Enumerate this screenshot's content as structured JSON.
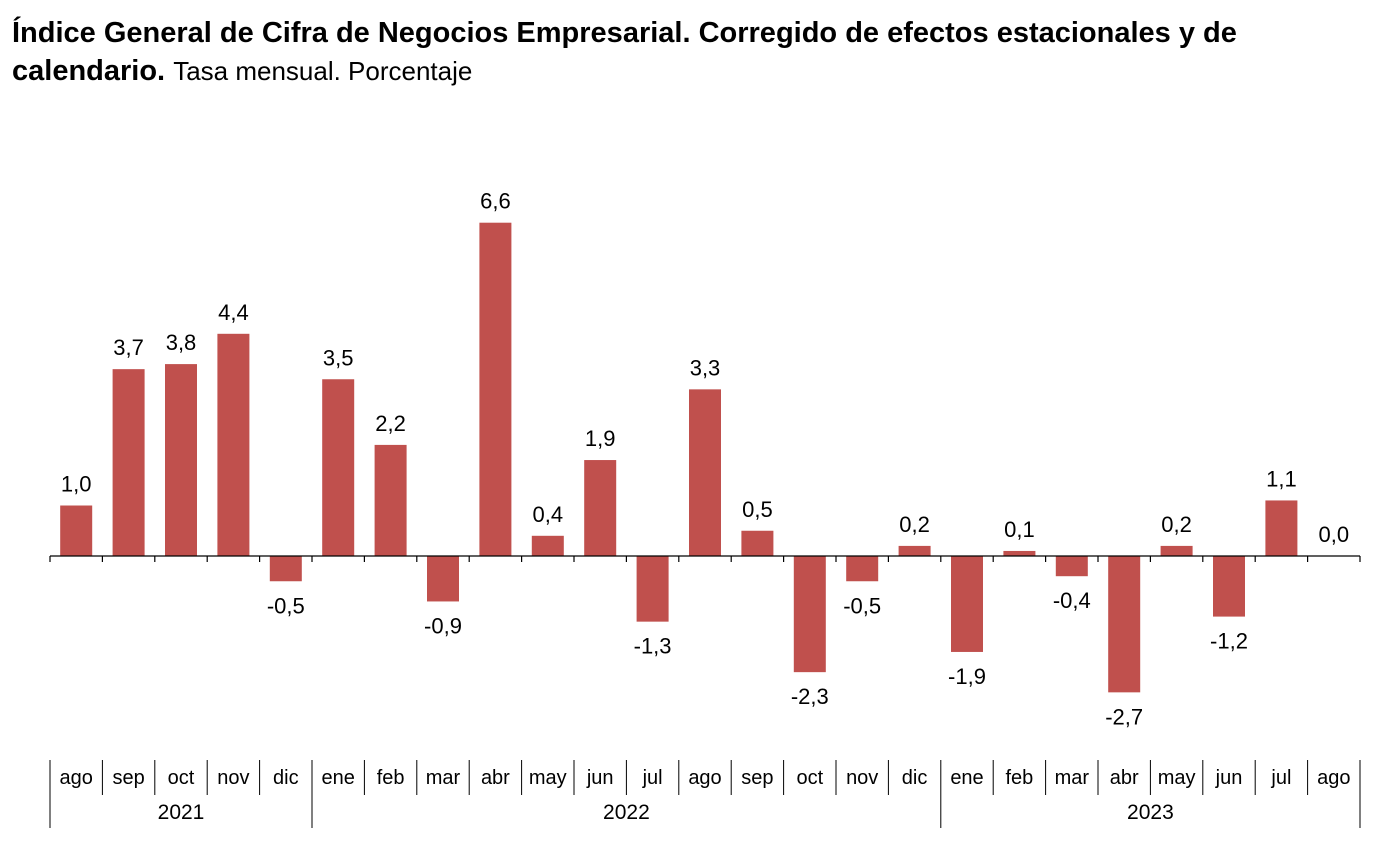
{
  "title": {
    "bold": "Índice General de Cifra de Negocios Empresarial. Corregido de efectos estacionales y de calendario.",
    "normal": "Tasa mensual. Porcentaje"
  },
  "chart_data": {
    "type": "bar",
    "title": "Índice General de Cifra de Negocios Empresarial. Corregido de efectos estacionales y de calendario. Tasa mensual. Porcentaje",
    "xlabel": "",
    "ylabel": "Porcentaje",
    "categories": [
      "ago",
      "sep",
      "oct",
      "nov",
      "dic",
      "ene",
      "feb",
      "mar",
      "abr",
      "may",
      "jun",
      "jul",
      "ago",
      "sep",
      "oct",
      "nov",
      "dic",
      "ene",
      "feb",
      "mar",
      "abr",
      "may",
      "jun",
      "jul",
      "ago"
    ],
    "years": [
      {
        "label": "2021",
        "start": 0,
        "end": 4
      },
      {
        "label": "2022",
        "start": 5,
        "end": 16
      },
      {
        "label": "2023",
        "start": 17,
        "end": 24
      }
    ],
    "values": [
      1.0,
      3.7,
      3.8,
      4.4,
      -0.5,
      3.5,
      2.2,
      -0.9,
      6.6,
      0.4,
      1.9,
      -1.3,
      3.3,
      0.5,
      -2.3,
      -0.5,
      0.2,
      -1.9,
      0.1,
      -0.4,
      -2.7,
      0.2,
      -1.2,
      1.1,
      0.0
    ],
    "value_labels": [
      "1,0",
      "3,7",
      "3,8",
      "4,4",
      "-0,5",
      "3,5",
      "2,2",
      "-0,9",
      "6,6",
      "0,4",
      "1,9",
      "-1,3",
      "3,3",
      "0,5",
      "-2,3",
      "-0,5",
      "0,2",
      "-1,9",
      "0,1",
      "-0,4",
      "-2,7",
      "0,2",
      "-1,2",
      "1,1",
      "0,0"
    ],
    "ylim": [
      -3.5,
      7.5
    ],
    "grid": false,
    "legend": "none",
    "bar_color": "#c0504d"
  }
}
